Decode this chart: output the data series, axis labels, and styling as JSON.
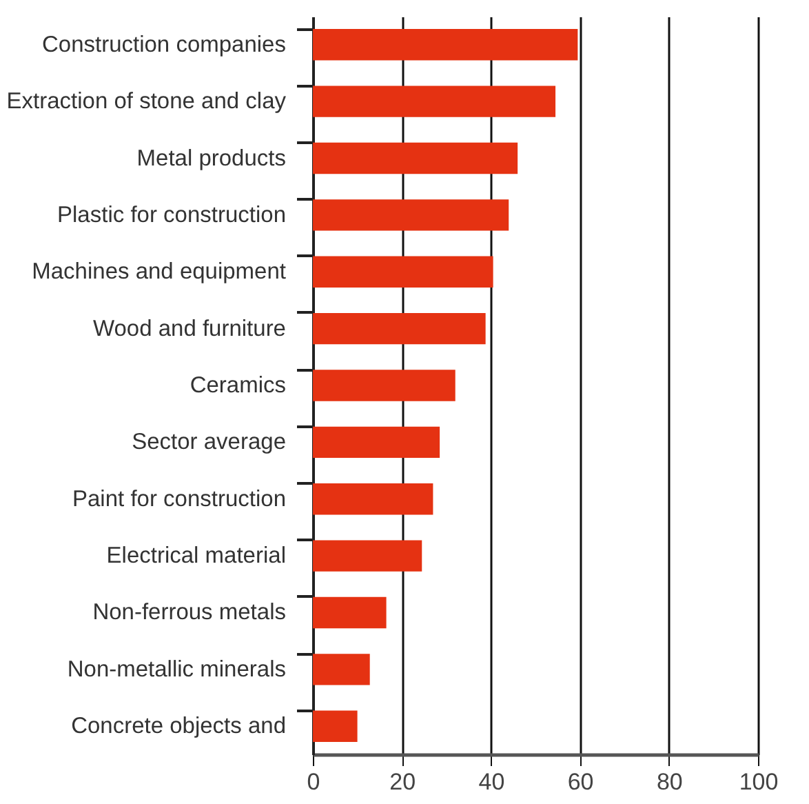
{
  "chart_data": {
    "type": "bar",
    "orientation": "horizontal",
    "categories": [
      "Construction companies",
      "Extraction of stone and clay",
      "Metal products",
      "Plastic for construction",
      "Machines and equipment",
      "Wood and furniture",
      "Ceramics",
      "Sector average",
      "Paint for construction",
      "Electrical material",
      "Non-ferrous metals",
      "Non-metallic minerals",
      "Concrete objects and"
    ],
    "values": [
      59.5,
      54.5,
      46,
      44,
      40.5,
      38.8,
      32,
      28.5,
      27,
      24.5,
      16.5,
      12.8,
      10
    ],
    "color": "#e53212",
    "xlim": [
      0,
      100
    ],
    "xticks": [
      0,
      20,
      40,
      60,
      80,
      100
    ],
    "grid": "x"
  }
}
